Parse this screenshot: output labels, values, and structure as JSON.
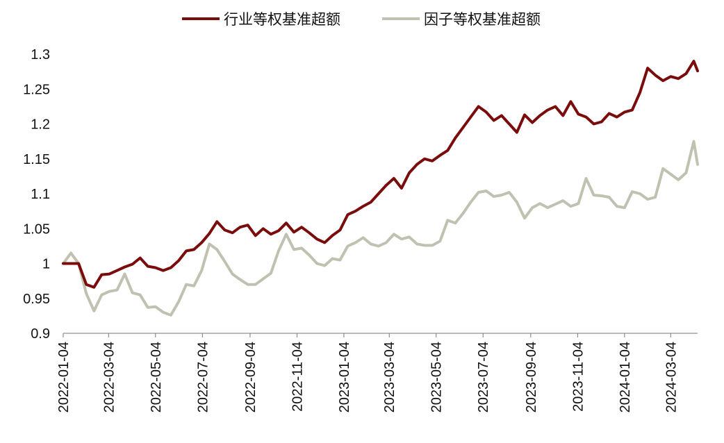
{
  "chart_data": {
    "type": "line",
    "title": "",
    "xlabel": "",
    "ylabel": "",
    "ylim": [
      0.9,
      1.3
    ],
    "yticks": [
      "0.9",
      "0.95",
      "1",
      "1.05",
      "1.1",
      "1.15",
      "1.2",
      "1.25",
      "1.3"
    ],
    "xticks": [
      "2022-01-04",
      "2022-03-04",
      "2022-05-04",
      "2022-07-04",
      "2022-09-04",
      "2022-11-04",
      "2023-01-04",
      "2023-03-04",
      "2023-05-04",
      "2023-07-04",
      "2023-09-04",
      "2023-11-04",
      "2024-01-04",
      "2024-03-04"
    ],
    "grid": false,
    "legend_position": "top",
    "x": [
      "2022-01-04",
      "2022-01-14",
      "2022-01-24",
      "2022-02-03",
      "2022-02-13",
      "2022-02-23",
      "2022-03-05",
      "2022-03-15",
      "2022-03-25",
      "2022-04-04",
      "2022-04-14",
      "2022-04-24",
      "2022-05-04",
      "2022-05-14",
      "2022-05-24",
      "2022-06-03",
      "2022-06-13",
      "2022-06-23",
      "2022-07-03",
      "2022-07-13",
      "2022-07-23",
      "2022-08-02",
      "2022-08-12",
      "2022-08-22",
      "2022-09-01",
      "2022-09-11",
      "2022-09-21",
      "2022-10-01",
      "2022-10-11",
      "2022-10-21",
      "2022-10-31",
      "2022-11-10",
      "2022-11-20",
      "2022-11-30",
      "2022-12-10",
      "2022-12-20",
      "2022-12-30",
      "2023-01-09",
      "2023-01-19",
      "2023-01-29",
      "2023-02-08",
      "2023-02-18",
      "2023-02-28",
      "2023-03-10",
      "2023-03-20",
      "2023-03-30",
      "2023-04-09",
      "2023-04-19",
      "2023-04-29",
      "2023-05-09",
      "2023-05-19",
      "2023-05-29",
      "2023-06-08",
      "2023-06-18",
      "2023-06-28",
      "2023-07-08",
      "2023-07-18",
      "2023-07-28",
      "2023-08-07",
      "2023-08-17",
      "2023-08-27",
      "2023-09-06",
      "2023-09-16",
      "2023-09-26",
      "2023-10-06",
      "2023-10-16",
      "2023-10-26",
      "2023-11-05",
      "2023-11-15",
      "2023-11-25",
      "2023-12-05",
      "2023-12-15",
      "2023-12-25",
      "2024-01-04",
      "2024-01-14",
      "2024-01-24",
      "2024-02-03",
      "2024-02-13",
      "2024-02-23",
      "2024-03-04",
      "2024-03-14",
      "2024-03-24",
      "2024-04-03",
      "2024-04-08"
    ],
    "series": [
      {
        "name": "行业等权基准超额",
        "color": "#7a0c0c",
        "values": [
          1.0,
          1.0,
          1.0,
          0.97,
          0.966,
          0.984,
          0.985,
          0.99,
          0.995,
          0.999,
          1.008,
          0.996,
          0.994,
          0.99,
          0.994,
          1.004,
          1.018,
          1.02,
          1.03,
          1.043,
          1.06,
          1.048,
          1.044,
          1.052,
          1.055,
          1.04,
          1.05,
          1.042,
          1.047,
          1.058,
          1.045,
          1.052,
          1.044,
          1.035,
          1.03,
          1.04,
          1.048,
          1.07,
          1.075,
          1.082,
          1.088,
          1.1,
          1.112,
          1.122,
          1.108,
          1.13,
          1.142,
          1.15,
          1.147,
          1.155,
          1.162,
          1.18,
          1.195,
          1.21,
          1.225,
          1.217,
          1.205,
          1.212,
          1.2,
          1.188,
          1.213,
          1.202,
          1.212,
          1.22,
          1.225,
          1.212,
          1.232,
          1.214,
          1.21,
          1.2,
          1.203,
          1.215,
          1.21,
          1.217,
          1.22,
          1.245,
          1.28,
          1.27,
          1.262,
          1.268,
          1.265,
          1.272,
          1.29,
          1.276
        ]
      },
      {
        "name": "因子等权基准超额",
        "color": "#c1c1b1",
        "values": [
          1.0,
          1.015,
          1.0,
          0.957,
          0.932,
          0.955,
          0.96,
          0.962,
          0.985,
          0.958,
          0.955,
          0.937,
          0.938,
          0.93,
          0.926,
          0.945,
          0.97,
          0.968,
          0.99,
          1.028,
          1.02,
          1.003,
          0.985,
          0.977,
          0.97,
          0.97,
          0.978,
          0.986,
          1.018,
          1.042,
          1.02,
          1.022,
          1.012,
          1.0,
          0.997,
          1.007,
          1.005,
          1.025,
          1.03,
          1.037,
          1.028,
          1.025,
          1.03,
          1.042,
          1.035,
          1.038,
          1.028,
          1.026,
          1.026,
          1.032,
          1.062,
          1.058,
          1.072,
          1.088,
          1.102,
          1.104,
          1.096,
          1.098,
          1.102,
          1.088,
          1.065,
          1.08,
          1.086,
          1.08,
          1.085,
          1.09,
          1.082,
          1.086,
          1.122,
          1.098,
          1.097,
          1.095,
          1.082,
          1.08,
          1.103,
          1.1,
          1.092,
          1.095,
          1.136,
          1.128,
          1.12,
          1.13,
          1.175,
          1.142
        ]
      }
    ]
  }
}
